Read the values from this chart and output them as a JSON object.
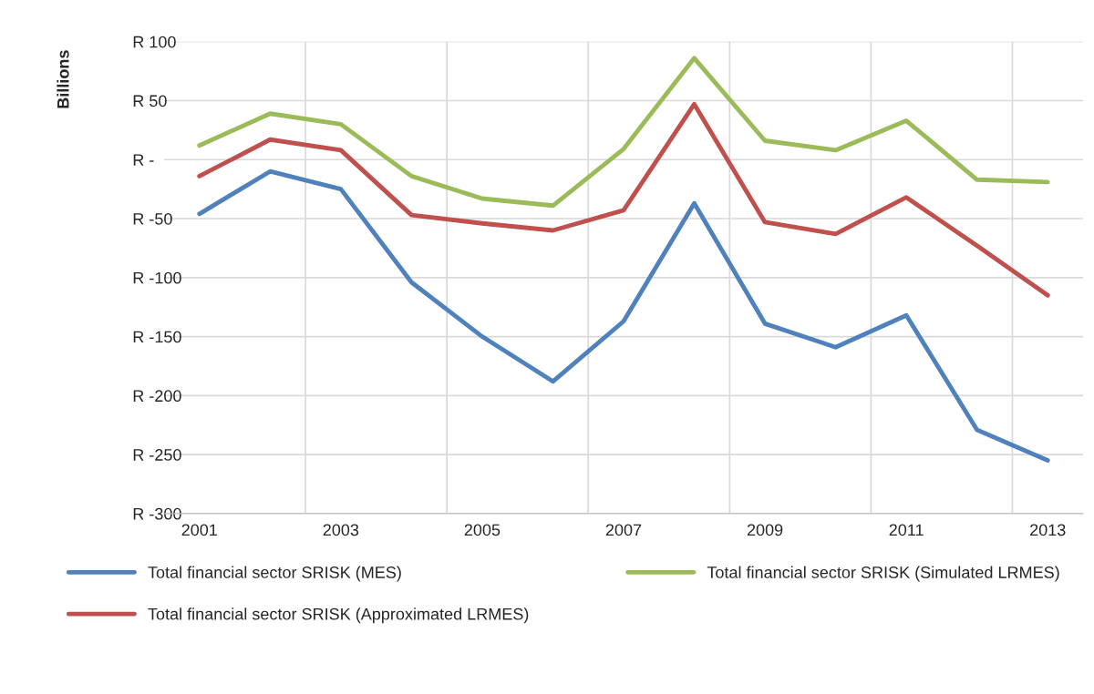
{
  "chart_data": {
    "type": "line",
    "ylabel": "Billions",
    "categories": [
      "2001",
      null,
      "2003",
      null,
      "2005",
      null,
      "2007",
      null,
      "2009",
      null,
      "2011",
      null,
      "2013"
    ],
    "series": [
      {
        "name": "Total financial sector SRISK (MES)",
        "color": "#4f81bd",
        "values": [
          -46,
          -10,
          -25,
          -104,
          -150,
          -188,
          -137,
          -37,
          -139,
          -159,
          -132,
          -229,
          -255
        ]
      },
      {
        "name": "Total financial sector SRISK (Approximated LRMES)",
        "color": "#c0504d",
        "values": [
          -14,
          17,
          8,
          -47,
          -54,
          -60,
          -43,
          47,
          -53,
          -63,
          -32,
          -73,
          -115
        ]
      },
      {
        "name": "Total financial sector SRISK (Simulated LRMES)",
        "color": "#9bbb59",
        "values": [
          12,
          39,
          30,
          -14,
          -33,
          -39,
          9,
          86,
          16,
          8,
          33,
          -17,
          -19
        ]
      }
    ],
    "ylim": [
      -300,
      100
    ],
    "yticks": [
      {
        "value": -300,
        "label": "R -300"
      },
      {
        "value": -250,
        "label": "R -250"
      },
      {
        "value": -200,
        "label": "R -200"
      },
      {
        "value": -150,
        "label": "R -150"
      },
      {
        "value": -100,
        "label": "R -100"
      },
      {
        "value": -50,
        "label": "R -50"
      },
      {
        "value": 0,
        "label": "R -"
      },
      {
        "value": 50,
        "label": "R 50"
      },
      {
        "value": 100,
        "label": "R 100"
      }
    ],
    "grid": true,
    "legend": "bottom",
    "marker": "none",
    "line_style": "solid"
  }
}
